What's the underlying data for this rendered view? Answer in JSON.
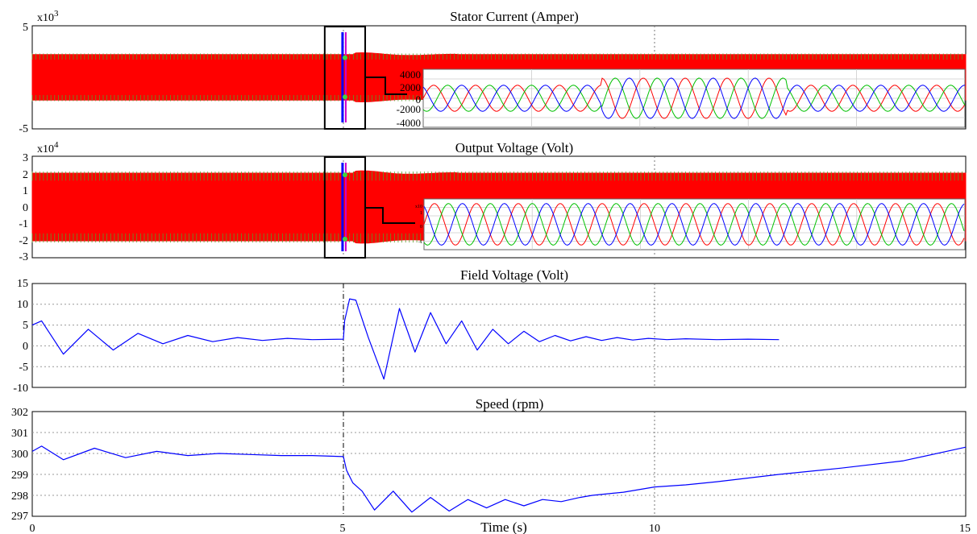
{
  "figure": {
    "xlabel": "Time (s)",
    "x_ticks": [
      "0",
      "5",
      "10",
      "15"
    ],
    "event_time": 5
  },
  "chart_data": [
    {
      "type": "line",
      "title": "Stator Current (Amper)",
      "scale_label": "x10",
      "scale_exp": "3",
      "xlim": [
        0,
        15
      ],
      "ylim": [
        -5,
        5
      ],
      "y_ticks": [
        "5",
        "-5"
      ],
      "envelope_color": "#ff0000",
      "inset": {
        "y_ticks": [
          "4000",
          "2000",
          "0",
          "-2000",
          "-4000"
        ],
        "phase_colors": [
          "#ff0000",
          "#00c000",
          "#0000ff"
        ]
      }
    },
    {
      "type": "line",
      "title": "Output Voltage (Volt)",
      "scale_label": "x10",
      "scale_exp": "4",
      "xlim": [
        0,
        15
      ],
      "ylim": [
        -3,
        3
      ],
      "y_ticks": [
        "3",
        "2",
        "1",
        "0",
        "-1",
        "-2",
        "-3"
      ],
      "envelope_color": "#ff0000",
      "inset": {
        "y_ticks": [
          "x10",
          "1",
          "0",
          "-1"
        ],
        "phase_colors": [
          "#ff0000",
          "#00c000",
          "#0000ff"
        ]
      }
    },
    {
      "type": "line",
      "title": "Field Voltage (Volt)",
      "xlim": [
        0,
        15
      ],
      "ylim": [
        -10,
        15
      ],
      "y_ticks": [
        "15",
        "10",
        "5",
        "0",
        "-5",
        "-10"
      ],
      "series": [
        {
          "color": "#0000ff",
          "x": [
            0,
            0.15,
            0.5,
            0.9,
            1.3,
            1.7,
            2.1,
            2.5,
            2.9,
            3.3,
            3.7,
            4.1,
            4.5,
            5.0,
            5.02,
            5.1,
            5.2,
            5.4,
            5.65,
            5.9,
            6.15,
            6.4,
            6.65,
            6.9,
            7.15,
            7.4,
            7.65,
            7.9,
            8.15,
            8.4,
            8.65,
            8.9,
            9.15,
            9.4,
            9.65,
            9.9,
            10.2,
            10.5,
            11.0,
            11.5,
            12.0
          ],
          "y": [
            5,
            6,
            -2,
            4,
            -1,
            3,
            0.5,
            2.5,
            1,
            2,
            1.3,
            1.8,
            1.5,
            1.6,
            6,
            11.3,
            11,
            2,
            -8,
            9,
            -1.5,
            8,
            0.5,
            6,
            -1,
            4,
            0.5,
            3.5,
            1,
            2.5,
            1.2,
            2.2,
            1.3,
            2,
            1.4,
            1.8,
            1.5,
            1.7,
            1.5,
            1.6,
            1.5
          ]
        }
      ]
    },
    {
      "type": "line",
      "title": "Speed (rpm)",
      "xlim": [
        0,
        15
      ],
      "ylim": [
        297,
        302
      ],
      "y_ticks": [
        "302",
        "301",
        "300",
        "299",
        "298",
        "297"
      ],
      "series": [
        {
          "color": "#0000ff",
          "x": [
            0,
            0.15,
            0.5,
            1.0,
            1.5,
            2.0,
            2.5,
            3.0,
            3.5,
            4.0,
            4.5,
            5.0,
            5.05,
            5.15,
            5.3,
            5.5,
            5.8,
            6.1,
            6.4,
            6.7,
            7.0,
            7.3,
            7.6,
            7.9,
            8.2,
            8.5,
            8.8,
            9.0,
            9.5,
            10.0,
            10.5,
            11.0,
            12.0,
            13.0,
            14.0,
            15.0
          ],
          "y": [
            300.1,
            300.35,
            299.7,
            300.25,
            299.8,
            300.1,
            299.9,
            300.0,
            299.95,
            299.9,
            299.9,
            299.85,
            299.2,
            298.6,
            298.2,
            297.3,
            298.2,
            297.2,
            297.9,
            297.25,
            297.8,
            297.4,
            297.8,
            297.5,
            297.8,
            297.7,
            297.9,
            298.0,
            298.15,
            298.4,
            298.5,
            298.65,
            299.0,
            299.3,
            299.65,
            300.3
          ]
        }
      ]
    }
  ]
}
